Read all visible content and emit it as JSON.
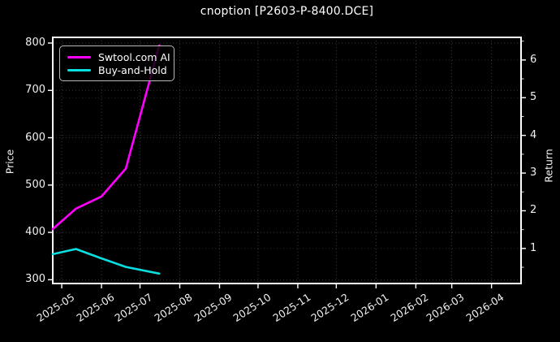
{
  "title": "cnoption [P2603-P-8400.DCE]",
  "colors": {
    "background": "#000000",
    "frame": "#ffffff",
    "grid": "#ffffff",
    "swtool_line": "#ff00ff",
    "buyhold_line": "#0adfe0",
    "text": "#f0f0f0"
  },
  "legend": {
    "items": [
      {
        "label": "Swtool.com AI",
        "color": "#ff00ff"
      },
      {
        "label": "Buy-and-Hold",
        "color": "#0adfe0"
      }
    ]
  },
  "axes": {
    "left": {
      "label": "Price",
      "ticks": [
        300,
        400,
        500,
        600,
        700,
        800
      ],
      "range": [
        292,
        812
      ]
    },
    "right": {
      "label": "Return",
      "ticks": [
        1,
        2,
        3,
        4,
        5,
        6
      ],
      "minor_step": 0.5,
      "range": [
        0.07,
        6.6
      ]
    },
    "x": {
      "tick_labels": [
        "2025-05",
        "2025-06",
        "2025-07",
        "2025-08",
        "2025-09",
        "2025-10",
        "2025-11",
        "2025-12",
        "2026-01",
        "2026-02",
        "2026-03",
        "2026-04"
      ],
      "range": [
        "2025-04-24",
        "2026-04-24"
      ]
    }
  },
  "chart_data": {
    "type": "line",
    "title": "cnoption [P2603-P-8400.DCE]",
    "x": [
      "2025-04-24",
      "2025-05-12",
      "2025-06-01",
      "2025-06-20",
      "2025-07-16"
    ],
    "series": [
      {
        "name": "Swtool.com AI",
        "color": "#ff00ff",
        "axis": "left",
        "values": [
          407,
          450,
          476,
          535,
          795
        ]
      },
      {
        "name": "Buy-and-Hold",
        "color": "#0adfe0",
        "axis": "left",
        "values": [
          354,
          365,
          345,
          327,
          313
        ]
      }
    ],
    "xlabel": "",
    "ylabel_left": "Price",
    "ylabel_right": "Return",
    "ylim_left": [
      292,
      812
    ],
    "ylim_right": [
      0.07,
      6.6
    ],
    "xlim": [
      "2025-04-24",
      "2026-04-24"
    ],
    "x_tick_labels": [
      "2025-05",
      "2025-06",
      "2025-07",
      "2025-08",
      "2025-09",
      "2025-10",
      "2025-11",
      "2025-12",
      "2026-01",
      "2026-02",
      "2026-03",
      "2026-04"
    ],
    "grid": true,
    "grid_style": "dotted",
    "legend_position": "upper left",
    "background": "black"
  }
}
